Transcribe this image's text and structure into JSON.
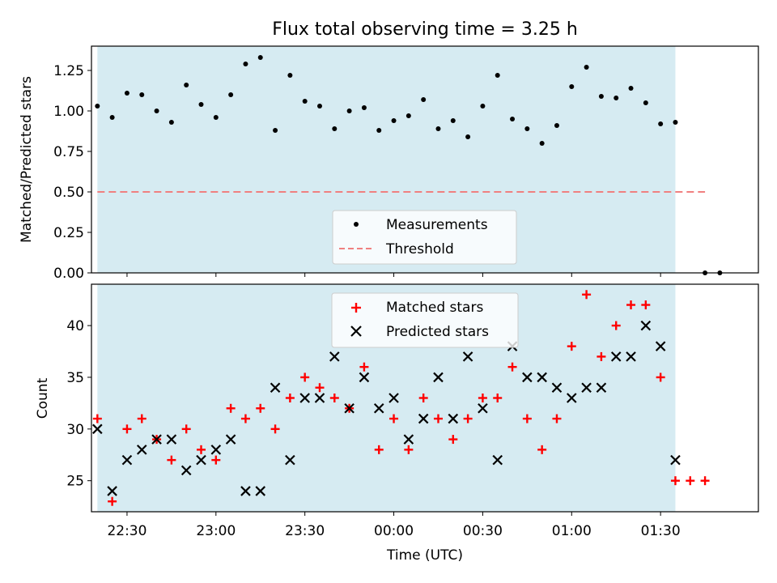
{
  "chart_data": [
    {
      "type": "scatter",
      "title": "Flux total observing time = 3.25 h",
      "ylabel": "Matched/Predicted stars",
      "ylim": [
        0,
        1.4
      ],
      "yticks": [
        "0.00",
        "0.25",
        "0.50",
        "0.75",
        "1.00",
        "1.25"
      ],
      "x_unit": "minutes from 22:00 UTC",
      "xlim": [
        18,
        243
      ],
      "shaded_range": [
        20,
        215
      ],
      "series": [
        {
          "name": "Measurements",
          "marker": "dot",
          "color": "#000000",
          "x": [
            20,
            25,
            30,
            35,
            40,
            45,
            50,
            55,
            60,
            65,
            70,
            75,
            80,
            85,
            90,
            95,
            100,
            105,
            110,
            115,
            120,
            125,
            130,
            135,
            140,
            145,
            150,
            155,
            160,
            165,
            170,
            175,
            180,
            185,
            190,
            195,
            200,
            205,
            210,
            215,
            225,
            230
          ],
          "y": [
            1.03,
            0.96,
            1.11,
            1.1,
            1.0,
            0.93,
            1.16,
            1.04,
            0.96,
            1.1,
            1.29,
            1.33,
            0.88,
            1.22,
            1.06,
            1.03,
            0.89,
            1.0,
            1.02,
            0.88,
            0.94,
            0.97,
            1.07,
            0.89,
            0.94,
            0.84,
            1.03,
            1.22,
            0.95,
            0.89,
            0.8,
            0.91,
            1.15,
            1.27,
            1.09,
            1.08,
            1.14,
            1.05,
            0.92,
            0.93,
            0.0,
            0.0
          ]
        },
        {
          "name": "Threshold",
          "marker": "dashed-line",
          "color": "#f08080",
          "x": [
            20,
            225
          ],
          "y": [
            0.5,
            0.5
          ]
        }
      ],
      "legend": "bottom-center"
    },
    {
      "type": "scatter",
      "ylabel": "Count",
      "xlabel": "Time (UTC)",
      "ylim": [
        22,
        44
      ],
      "yticks": [
        "25",
        "30",
        "35",
        "40"
      ],
      "x_unit": "minutes from 22:00 UTC",
      "xlim": [
        18,
        243
      ],
      "xticks": [
        {
          "value": 30,
          "label": "22:30"
        },
        {
          "value": 60,
          "label": "23:00"
        },
        {
          "value": 90,
          "label": "23:30"
        },
        {
          "value": 120,
          "label": "00:00"
        },
        {
          "value": 150,
          "label": "00:30"
        },
        {
          "value": 180,
          "label": "01:00"
        },
        {
          "value": 210,
          "label": "01:30"
        }
      ],
      "shaded_range": [
        20,
        215
      ],
      "series": [
        {
          "name": "Matched stars",
          "marker": "plus",
          "color": "#ff0000",
          "x": [
            20,
            25,
            30,
            35,
            40,
            45,
            50,
            55,
            60,
            65,
            70,
            75,
            80,
            85,
            90,
            95,
            100,
            105,
            110,
            115,
            120,
            125,
            130,
            135,
            140,
            145,
            150,
            155,
            160,
            165,
            170,
            175,
            180,
            185,
            190,
            195,
            200,
            205,
            210,
            215,
            220,
            225
          ],
          "y": [
            31,
            23,
            30,
            31,
            29,
            27,
            30,
            28,
            27,
            32,
            31,
            32,
            30,
            33,
            35,
            34,
            33,
            32,
            36,
            28,
            31,
            28,
            33,
            31,
            29,
            31,
            33,
            33,
            36,
            31,
            28,
            31,
            38,
            43,
            37,
            40,
            42,
            42,
            35,
            25,
            25,
            25
          ]
        },
        {
          "name": "Predicted stars",
          "marker": "x",
          "color": "#000000",
          "x": [
            20,
            25,
            30,
            35,
            40,
            45,
            50,
            55,
            60,
            65,
            70,
            75,
            80,
            85,
            90,
            95,
            100,
            105,
            110,
            115,
            120,
            125,
            130,
            135,
            140,
            145,
            150,
            155,
            160,
            165,
            170,
            175,
            180,
            185,
            190,
            195,
            200,
            205,
            210,
            215
          ],
          "y": [
            30,
            24,
            27,
            28,
            29,
            29,
            26,
            27,
            28,
            29,
            24,
            24,
            34,
            27,
            33,
            33,
            37,
            32,
            35,
            32,
            33,
            29,
            31,
            35,
            31,
            37,
            32,
            27,
            38,
            35,
            35,
            34,
            33,
            34,
            34,
            37,
            37,
            40,
            38,
            27
          ]
        }
      ],
      "legend": "top-center"
    }
  ]
}
